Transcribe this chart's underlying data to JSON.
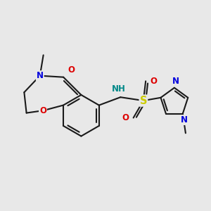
{
  "background_color": "#e8e8e8",
  "bond_color": "#1a1a1a",
  "bond_lw": 1.5,
  "colors": {
    "N": "#0000dd",
    "O": "#dd0000",
    "S": "#cccc00",
    "NH": "#008888"
  },
  "figsize": [
    3.0,
    3.0
  ],
  "dpi": 100
}
